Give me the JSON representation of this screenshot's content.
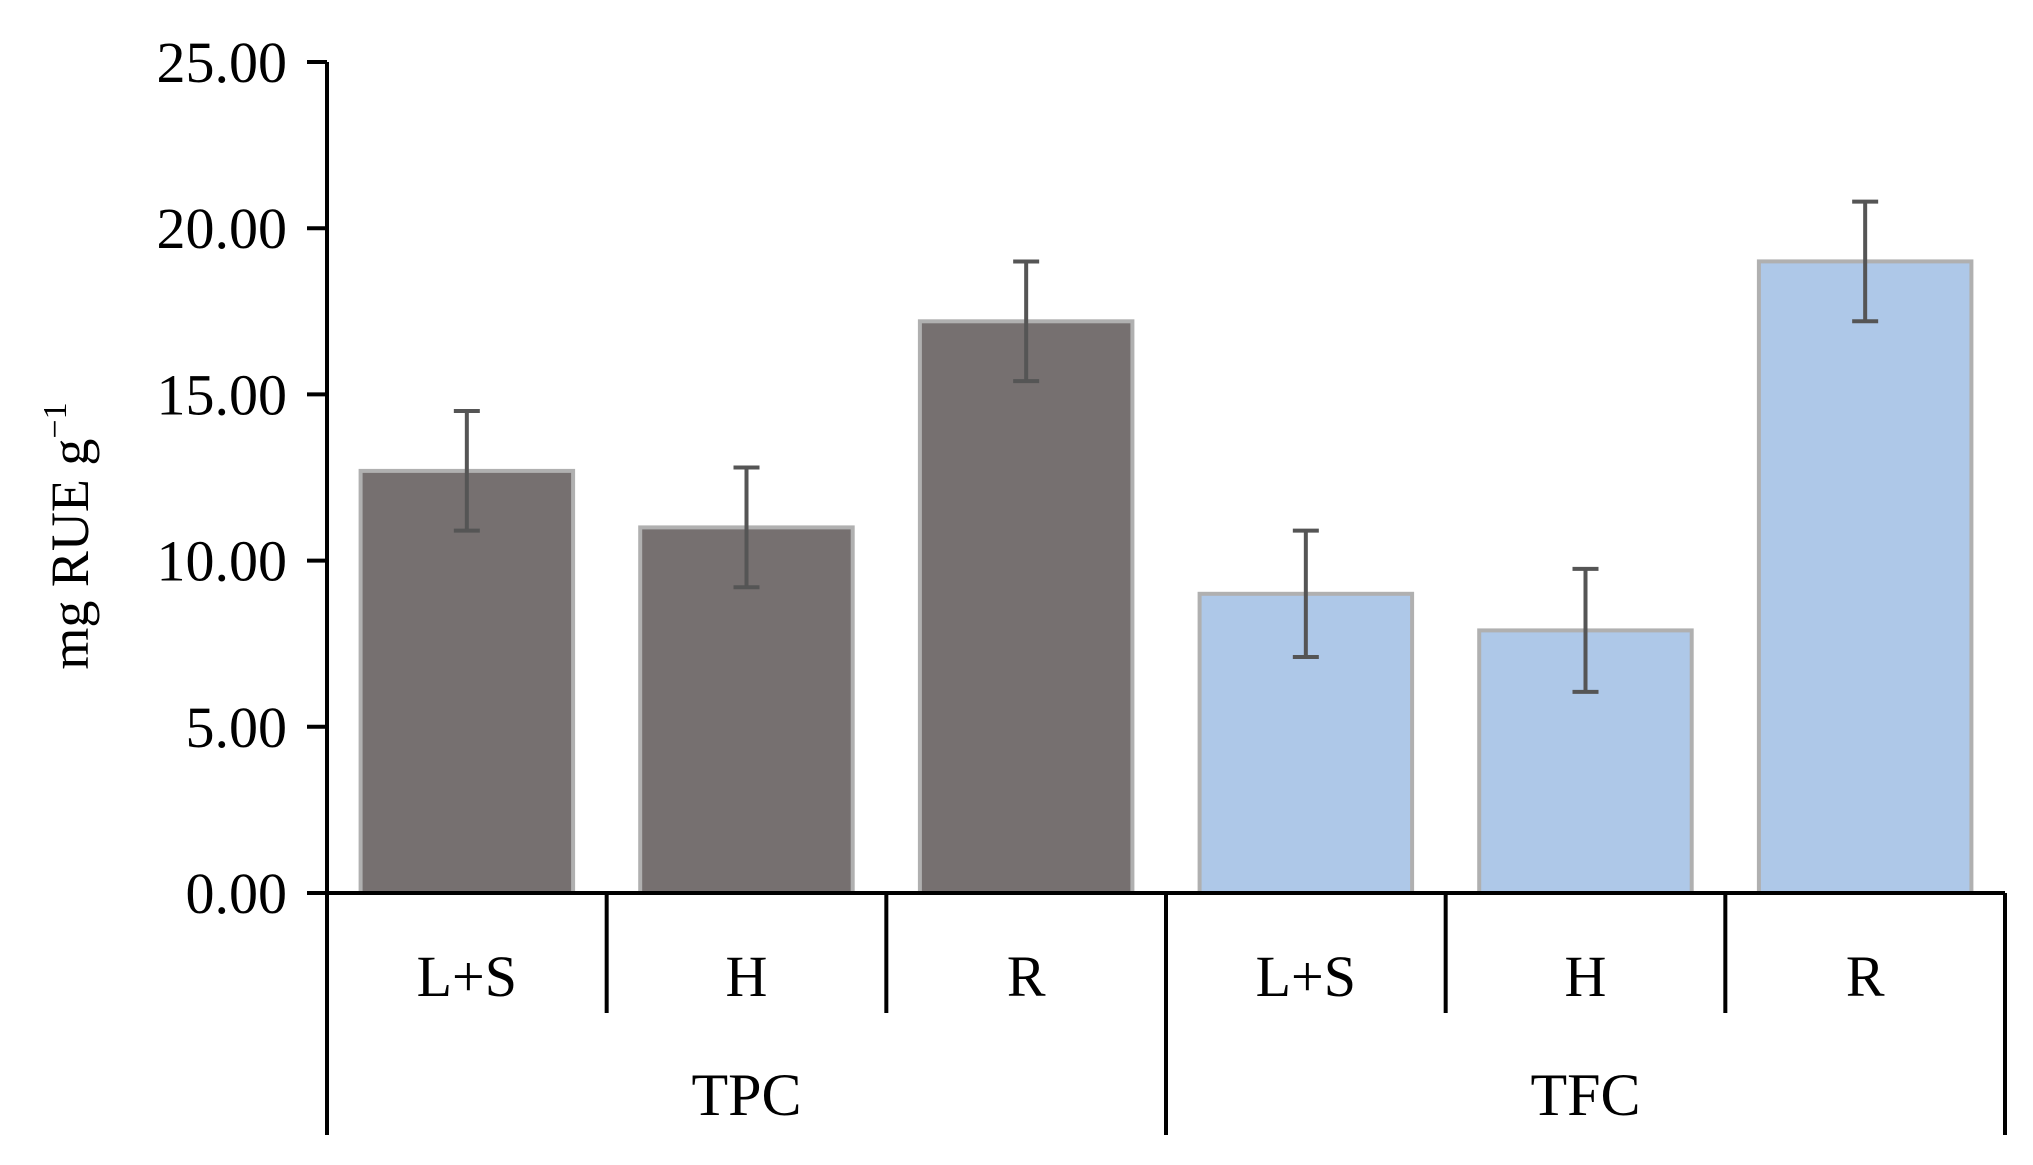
{
  "chart_data": {
    "type": "bar",
    "title": "",
    "xlabel": "",
    "ylabel": "mg RUE g",
    "ylabel_superscript": "−1",
    "ylim": [
      0,
      25
    ],
    "yticks": [
      0,
      5,
      10,
      15,
      20,
      25
    ],
    "ytick_labels": [
      "0.00",
      "5.00",
      "10.00",
      "15.00",
      "20.00",
      "25.00"
    ],
    "grid": false,
    "legend": "none",
    "groups": [
      {
        "name": "TPC",
        "color": "#767070",
        "categories": [
          "L+S",
          "H",
          "R"
        ],
        "values": [
          12.7,
          11.0,
          17.2
        ],
        "errors": [
          1.8,
          1.8,
          1.8
        ]
      },
      {
        "name": "TFC",
        "color": "#aec8e8",
        "categories": [
          "L+S",
          "H",
          "R"
        ],
        "values": [
          9.0,
          7.9,
          19.0
        ],
        "errors": [
          1.9,
          1.85,
          1.8
        ]
      }
    ],
    "bar_edge_color": "#b0b0b0",
    "error_bar_color": "#555555",
    "axis_color": "#000000"
  }
}
